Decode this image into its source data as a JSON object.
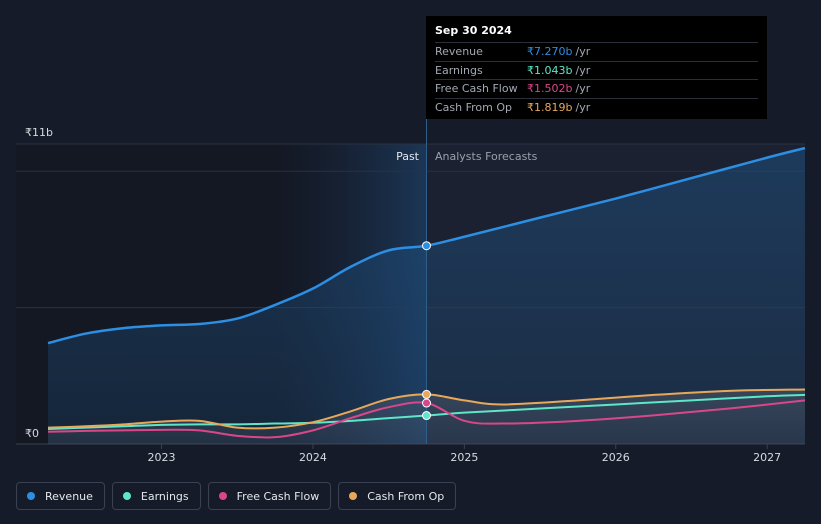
{
  "tooltip": {
    "date": "Sep 30 2024",
    "rows": [
      {
        "label": "Revenue",
        "value": "₹7.270b",
        "unit": "/yr",
        "color": "#2d8fe3"
      },
      {
        "label": "Earnings",
        "value": "₹1.043b",
        "unit": "/yr",
        "color": "#5ee6c8"
      },
      {
        "label": "Free Cash Flow",
        "value": "₹1.502b",
        "unit": "/yr",
        "color": "#d9478a"
      },
      {
        "label": "Cash From Op",
        "value": "₹1.819b",
        "unit": "/yr",
        "color": "#e8a85a"
      }
    ]
  },
  "chart_data": {
    "type": "line",
    "ytick_top": "₹11b",
    "ytick_bottom": "₹0",
    "ylim": [
      0,
      11
    ],
    "xlim": [
      2022.25,
      2027.25
    ],
    "xticks": [
      2023,
      2024,
      2025,
      2026,
      2027
    ],
    "xtick_labels": [
      "2023",
      "2024",
      "2025",
      "2026",
      "2027"
    ],
    "divider_x": 2024.75,
    "past_label": "Past",
    "forecast_label": "Analysts Forecasts",
    "series": [
      {
        "name": "Revenue",
        "color": "#2d8fe3",
        "points": [
          [
            2022.25,
            3.7
          ],
          [
            2022.5,
            4.05
          ],
          [
            2022.75,
            4.25
          ],
          [
            2023.0,
            4.35
          ],
          [
            2023.25,
            4.4
          ],
          [
            2023.5,
            4.6
          ],
          [
            2023.75,
            5.1
          ],
          [
            2024.0,
            5.7
          ],
          [
            2024.25,
            6.5
          ],
          [
            2024.5,
            7.1
          ],
          [
            2024.75,
            7.27
          ],
          [
            2025.0,
            7.6
          ],
          [
            2025.5,
            8.3
          ],
          [
            2026.0,
            9.0
          ],
          [
            2026.5,
            9.75
          ],
          [
            2027.0,
            10.5
          ],
          [
            2027.25,
            10.85
          ]
        ]
      },
      {
        "name": "Earnings",
        "color": "#5ee6c8",
        "points": [
          [
            2022.25,
            0.55
          ],
          [
            2022.5,
            0.6
          ],
          [
            2022.75,
            0.65
          ],
          [
            2023.0,
            0.7
          ],
          [
            2023.25,
            0.72
          ],
          [
            2023.5,
            0.72
          ],
          [
            2023.75,
            0.75
          ],
          [
            2024.0,
            0.78
          ],
          [
            2024.25,
            0.85
          ],
          [
            2024.5,
            0.95
          ],
          [
            2024.75,
            1.043
          ],
          [
            2025.0,
            1.15
          ],
          [
            2025.5,
            1.3
          ],
          [
            2026.0,
            1.45
          ],
          [
            2026.5,
            1.6
          ],
          [
            2027.0,
            1.75
          ],
          [
            2027.25,
            1.8
          ]
        ]
      },
      {
        "name": "Free Cash Flow",
        "color": "#d9478a",
        "points": [
          [
            2022.25,
            0.45
          ],
          [
            2022.5,
            0.48
          ],
          [
            2022.75,
            0.5
          ],
          [
            2023.0,
            0.52
          ],
          [
            2023.25,
            0.5
          ],
          [
            2023.5,
            0.3
          ],
          [
            2023.75,
            0.25
          ],
          [
            2024.0,
            0.5
          ],
          [
            2024.25,
            0.95
          ],
          [
            2024.5,
            1.35
          ],
          [
            2024.75,
            1.502
          ],
          [
            2025.0,
            0.85
          ],
          [
            2025.25,
            0.75
          ],
          [
            2025.75,
            0.85
          ],
          [
            2026.25,
            1.05
          ],
          [
            2026.75,
            1.3
          ],
          [
            2027.25,
            1.6
          ]
        ]
      },
      {
        "name": "Cash From Op",
        "color": "#e8a85a",
        "points": [
          [
            2022.25,
            0.6
          ],
          [
            2022.5,
            0.65
          ],
          [
            2022.75,
            0.72
          ],
          [
            2023.0,
            0.82
          ],
          [
            2023.25,
            0.85
          ],
          [
            2023.5,
            0.6
          ],
          [
            2023.75,
            0.6
          ],
          [
            2024.0,
            0.8
          ],
          [
            2024.25,
            1.2
          ],
          [
            2024.5,
            1.65
          ],
          [
            2024.75,
            1.819
          ],
          [
            2025.0,
            1.6
          ],
          [
            2025.25,
            1.45
          ],
          [
            2025.75,
            1.6
          ],
          [
            2026.25,
            1.8
          ],
          [
            2026.75,
            1.95
          ],
          [
            2027.25,
            2.0
          ]
        ]
      }
    ]
  },
  "legend": [
    {
      "label": "Revenue",
      "color": "#2d8fe3"
    },
    {
      "label": "Earnings",
      "color": "#5ee6c8"
    },
    {
      "label": "Free Cash Flow",
      "color": "#d9478a"
    },
    {
      "label": "Cash From Op",
      "color": "#e8a85a"
    }
  ]
}
